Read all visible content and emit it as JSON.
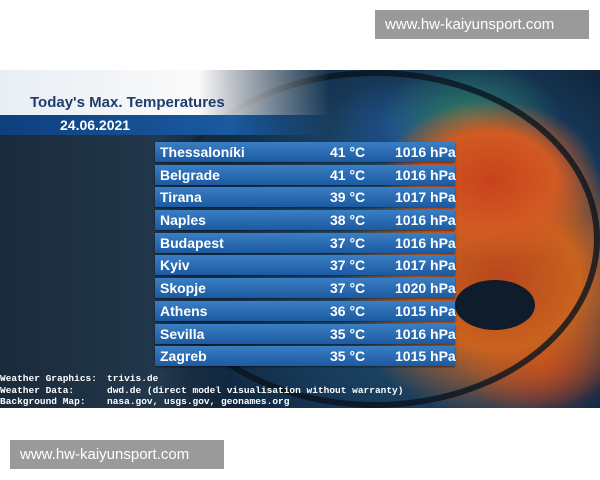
{
  "watermark": {
    "top": "www.hw-kaiyunsport.com",
    "bottom": "www.hw-kaiyunsport.com"
  },
  "header": {
    "title": "Today's Max. Temperatures",
    "date": "24.06.2021"
  },
  "rows": [
    {
      "city": "Thessaloníki",
      "temp": "41 °C",
      "pressure": "1016 hPa"
    },
    {
      "city": "Belgrade",
      "temp": "41 °C",
      "pressure": "1016 hPa"
    },
    {
      "city": "Tirana",
      "temp": "39 °C",
      "pressure": "1017 hPa"
    },
    {
      "city": "Naples",
      "temp": "38 °C",
      "pressure": "1016 hPa"
    },
    {
      "city": "Budapest",
      "temp": "37 °C",
      "pressure": "1016 hPa"
    },
    {
      "city": "Kyiv",
      "temp": "37 °C",
      "pressure": "1017 hPa"
    },
    {
      "city": "Skopje",
      "temp": "37 °C",
      "pressure": "1020 hPa"
    },
    {
      "city": "Athens",
      "temp": "36 °C",
      "pressure": "1015 hPa"
    },
    {
      "city": "Sevilla",
      "temp": "35 °C",
      "pressure": "1016 hPa"
    },
    {
      "city": "Zagreb",
      "temp": "35 °C",
      "pressure": "1015 hPa"
    }
  ],
  "credits": [
    {
      "label": "Weather Graphics:",
      "value": "trivis.de"
    },
    {
      "label": "Weather Data:",
      "value": "dwd.de (direct model visualisation without warranty)"
    },
    {
      "label": "Background Map:",
      "value": "nasa.gov, usgs.gov, geonames.org"
    }
  ]
}
